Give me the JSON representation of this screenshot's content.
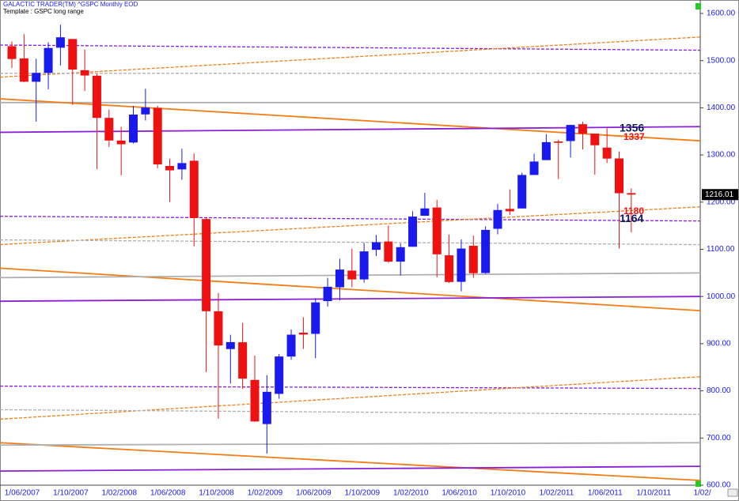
{
  "chart_data": {
    "type": "candlestick",
    "title": "GALACTIC TRADER(TM)  ^GSPC Monthly EOD",
    "subtitle": "Template : GSPC long range",
    "x_labels": [
      "1/06/2007",
      "1/10/2007",
      "1/02/2008",
      "1/06/2008",
      "1/10/2008",
      "1/02/2009",
      "1/06/2009",
      "1/10/2009",
      "1/02/2010",
      "1/06/2010",
      "1/10/2010",
      "1/02/2011",
      "1/06/2011",
      "1/10/2011",
      "1/02/"
    ],
    "up_color": "#1a1aee",
    "down_color": "#ee1111",
    "open": [
      1530.6,
      1504.7,
      1455.2,
      1474.0,
      1527.3,
      1545.8,
      1479.6,
      1468.0,
      1378.6,
      1330.5,
      1326.4,
      1386.0,
      1399.6,
      1276.7,
      1269.4,
      1287.8,
      1164.2,
      968.7,
      888.6,
      903.0,
      823.1,
      729.6,
      793.6,
      872.7,
      923.3,
      920.8,
      990.2,
      1019.5,
      1054.9,
      1036.2,
      1098.9,
      1116.6,
      1073.9,
      1105.4,
      1171.2,
      1188.6,
      1087.3,
      1031.1,
      1107.5,
      1049.7,
      1143.5,
      1185.7,
      1186.6,
      1257.6,
      1289.1,
      1328.6,
      1329.5,
      1365.2,
      1345.2,
      1315.5,
      1292.6,
      1219.1
    ],
    "high": [
      1540.6,
      1555.9,
      1503.9,
      1538.7,
      1576.1,
      1545.8,
      1523.6,
      1471.8,
      1396.0,
      1359.7,
      1404.0,
      1440.2,
      1404.1,
      1292.2,
      1313.2,
      1303.0,
      1167.0,
      1007.5,
      918.9,
      943.9,
      875.0,
      833.0,
      878.0,
      930.2,
      956.2,
      996.7,
      1039.5,
      1080.2,
      1101.4,
      1113.7,
      1130.4,
      1150.5,
      1112.4,
      1180.7,
      1219.8,
      1205.1,
      1131.2,
      1121.0,
      1129.2,
      1148.7,
      1196.1,
      1227.1,
      1262.6,
      1302.7,
      1344.1,
      1332.3,
      1364.0,
      1370.6,
      1345.2,
      1356.5,
      1307.4,
      1229.3
    ],
    "low": [
      1484.2,
      1454.3,
      1370.6,
      1439.3,
      1489.6,
      1406.1,
      1435.7,
      1270.1,
      1316.8,
      1257.0,
      1324.4,
      1373.1,
      1272.0,
      1200.4,
      1247.5,
      1106.4,
      839.8,
      741.0,
      815.7,
      804.1,
      734.5,
      666.8,
      783.3,
      866.1,
      888.9,
      869.3,
      978.5,
      992.0,
      1020.0,
      1029.4,
      1085.9,
      1071.6,
      1044.5,
      1105.4,
      1170.7,
      1040.8,
      1028.3,
      1010.9,
      1039.7,
      1048.2,
      1131.9,
      1173.0,
      1186.6,
      1257.6,
      1289.1,
      1249.1,
      1294.7,
      1311.8,
      1258.1,
      1282.9,
      1101.5,
      1136.2
    ],
    "close": [
      1503.4,
      1455.3,
      1474.0,
      1526.8,
      1549.4,
      1481.1,
      1468.4,
      1378.6,
      1330.6,
      1322.7,
      1385.6,
      1400.4,
      1280.0,
      1267.4,
      1282.8,
      1166.4,
      968.8,
      896.2,
      903.3,
      825.9,
      735.1,
      797.9,
      872.8,
      919.1,
      919.3,
      987.5,
      1020.6,
      1057.1,
      1036.2,
      1095.6,
      1115.1,
      1073.9,
      1104.5,
      1169.4,
      1186.7,
      1089.4,
      1030.7,
      1101.6,
      1049.3,
      1141.2,
      1183.3,
      1180.6,
      1257.6,
      1286.1,
      1327.2,
      1325.8,
      1363.6,
      1345.2,
      1320.6,
      1292.3,
      1218.9,
      1216.0
    ],
    "overlays": [
      {
        "color": "#8a1fd6",
        "dash": true,
        "values": [
          1533,
          1522
        ]
      },
      {
        "color": "#f07d16",
        "dash": true,
        "values": [
          1465,
          1550
        ]
      },
      {
        "color": "#b0b0b0",
        "dash": true,
        "values": [
          1473,
          1473
        ]
      },
      {
        "color": "#b0b0b0",
        "dash": false,
        "values": [
          1411,
          1411
        ]
      },
      {
        "color": "#f07d16",
        "dash": false,
        "values": [
          1419,
          1330
        ]
      },
      {
        "color": "#8a1fd6",
        "dash": false,
        "values": [
          1348,
          1360
        ]
      },
      {
        "color": "#8a1fd6",
        "dash": true,
        "values": [
          1170,
          1160
        ]
      },
      {
        "color": "#f07d16",
        "dash": true,
        "values": [
          1110,
          1190
        ]
      },
      {
        "color": "#b0b0b0",
        "dash": true,
        "values": [
          1120,
          1110
        ]
      },
      {
        "color": "#f07d16",
        "dash": false,
        "values": [
          1060,
          970
        ]
      },
      {
        "color": "#b0b0b0",
        "dash": false,
        "values": [
          1040,
          1050
        ]
      },
      {
        "color": "#8a1fd6",
        "dash": false,
        "values": [
          990,
          1000
        ]
      },
      {
        "color": "#8a1fd6",
        "dash": true,
        "values": [
          810,
          805
        ]
      },
      {
        "color": "#f07d16",
        "dash": true,
        "values": [
          740,
          830
        ]
      },
      {
        "color": "#b0b0b0",
        "dash": true,
        "values": [
          760,
          750
        ]
      },
      {
        "color": "#f07d16",
        "dash": false,
        "values": [
          690,
          610
        ]
      },
      {
        "color": "#b0b0b0",
        "dash": false,
        "values": [
          685,
          690
        ]
      },
      {
        "color": "#8a1fd6",
        "dash": false,
        "values": [
          630,
          640
        ]
      }
    ],
    "annotations": [
      {
        "value": 1356,
        "color": "#0d1a5c"
      },
      {
        "value": 1337,
        "color": "#ee1111"
      },
      {
        "value": 1180,
        "color": "#ee1111"
      },
      {
        "value": 1164,
        "color": "#0d1a5c"
      }
    ],
    "last_price": 1216.01,
    "ylim": [
      600,
      1600
    ],
    "yticks": [
      {
        "value": 600,
        "label": "600.00"
      },
      {
        "value": 700,
        "label": "700.00"
      },
      {
        "value": 800,
        "label": "800.00"
      },
      {
        "value": 900,
        "label": "900.00"
      },
      {
        "value": 1000,
        "label": "1000.00"
      },
      {
        "value": 1100,
        "label": "1100.00"
      },
      {
        "value": 1200,
        "label": "1200.00"
      },
      {
        "value": 1300,
        "label": "1300.00"
      },
      {
        "value": 1400,
        "label": "1400.00"
      },
      {
        "value": 1500,
        "label": "1500.00"
      },
      {
        "value": 1600,
        "label": "1600.00"
      }
    ]
  }
}
